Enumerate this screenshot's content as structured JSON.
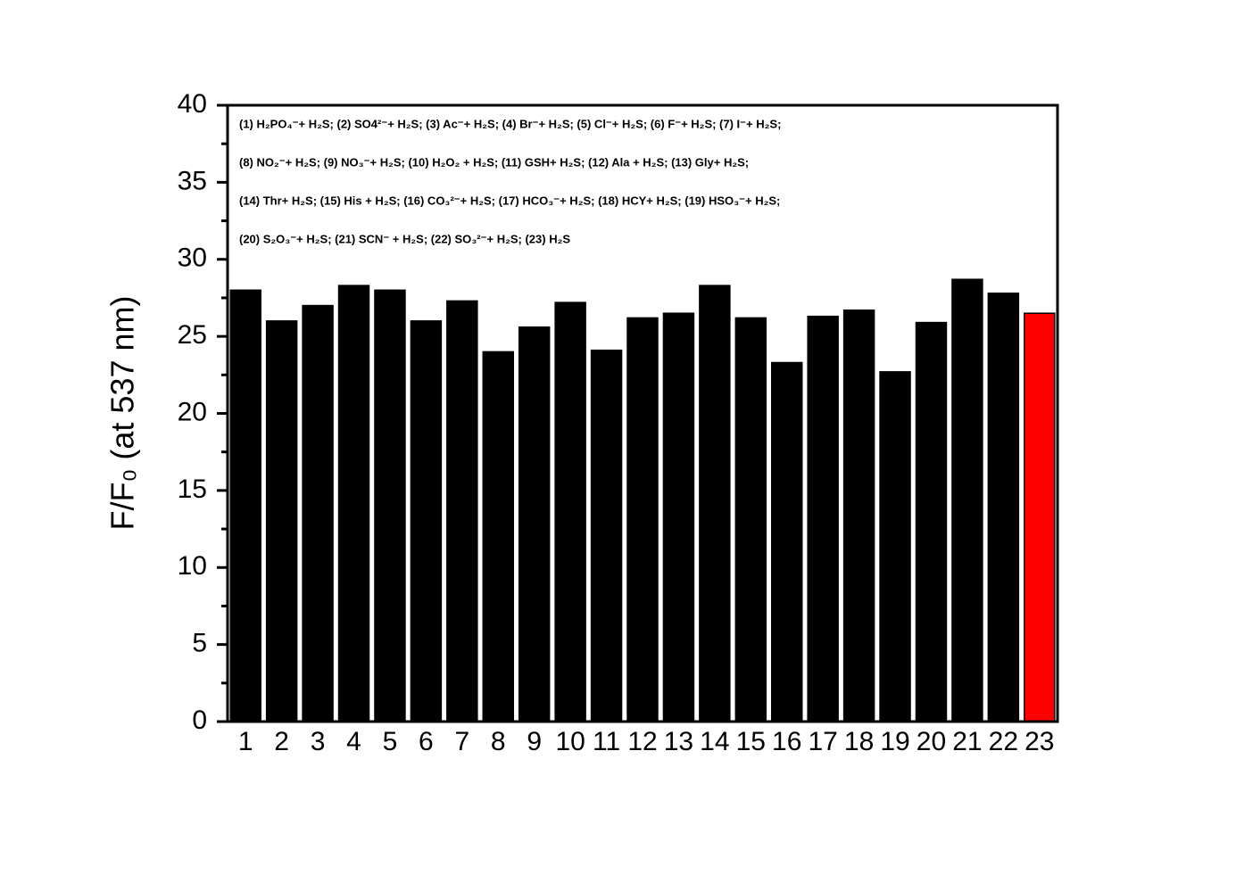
{
  "chart_data": {
    "type": "bar",
    "ylabel": "F/F₀ (at 537 nm)",
    "annotation": [
      "(1) H₂PO₄⁻+ H₂S; (2) SO4²⁻+ H₂S; (3) Ac⁻+ H₂S; (4) Br⁻+ H₂S; (5) Cl⁻+ H₂S; (6) F⁻+ H₂S; (7) I⁻+ H₂S;",
      "(8) NO₂⁻+ H₂S; (9) NO₃⁻+ H₂S; (10) H₂O₂ + H₂S; (11) GSH+ H₂S; (12) Ala + H₂S; (13) Gly+ H₂S;",
      "(14) Thr+ H₂S; (15) His + H₂S; (16) CO₃²⁻+ H₂S; (17) HCO₃⁻+ H₂S; (18) HCY+ H₂S; (19) HSO₃⁻+ H₂S;",
      "(20) S₂O₃⁻+ H₂S; (21) SCN⁻ + H₂S; (22) SO₃²⁻+ H₂S; (23) H₂S"
    ],
    "categories": [
      "1",
      "2",
      "3",
      "4",
      "5",
      "6",
      "7",
      "8",
      "9",
      "10",
      "11",
      "12",
      "13",
      "14",
      "15",
      "16",
      "17",
      "18",
      "19",
      "20",
      "21",
      "22",
      "23"
    ],
    "values": [
      28.0,
      26.0,
      27.0,
      28.3,
      28.0,
      26.0,
      27.3,
      24.0,
      25.6,
      27.2,
      24.1,
      26.2,
      26.5,
      28.3,
      26.2,
      23.3,
      26.3,
      26.7,
      22.7,
      25.9,
      28.7,
      27.8,
      26.5
    ],
    "colors": [
      "#000000",
      "#000000",
      "#000000",
      "#000000",
      "#000000",
      "#000000",
      "#000000",
      "#000000",
      "#000000",
      "#000000",
      "#000000",
      "#000000",
      "#000000",
      "#000000",
      "#000000",
      "#000000",
      "#000000",
      "#000000",
      "#000000",
      "#000000",
      "#000000",
      "#000000",
      "#ff0000"
    ],
    "ylim": [
      0,
      40
    ],
    "yticks": [
      0,
      5,
      10,
      15,
      20,
      25,
      30,
      35,
      40
    ],
    "yminorticks": [
      2.5,
      7.5,
      12.5,
      17.5,
      22.5,
      27.5,
      32.5,
      37.5
    ]
  }
}
